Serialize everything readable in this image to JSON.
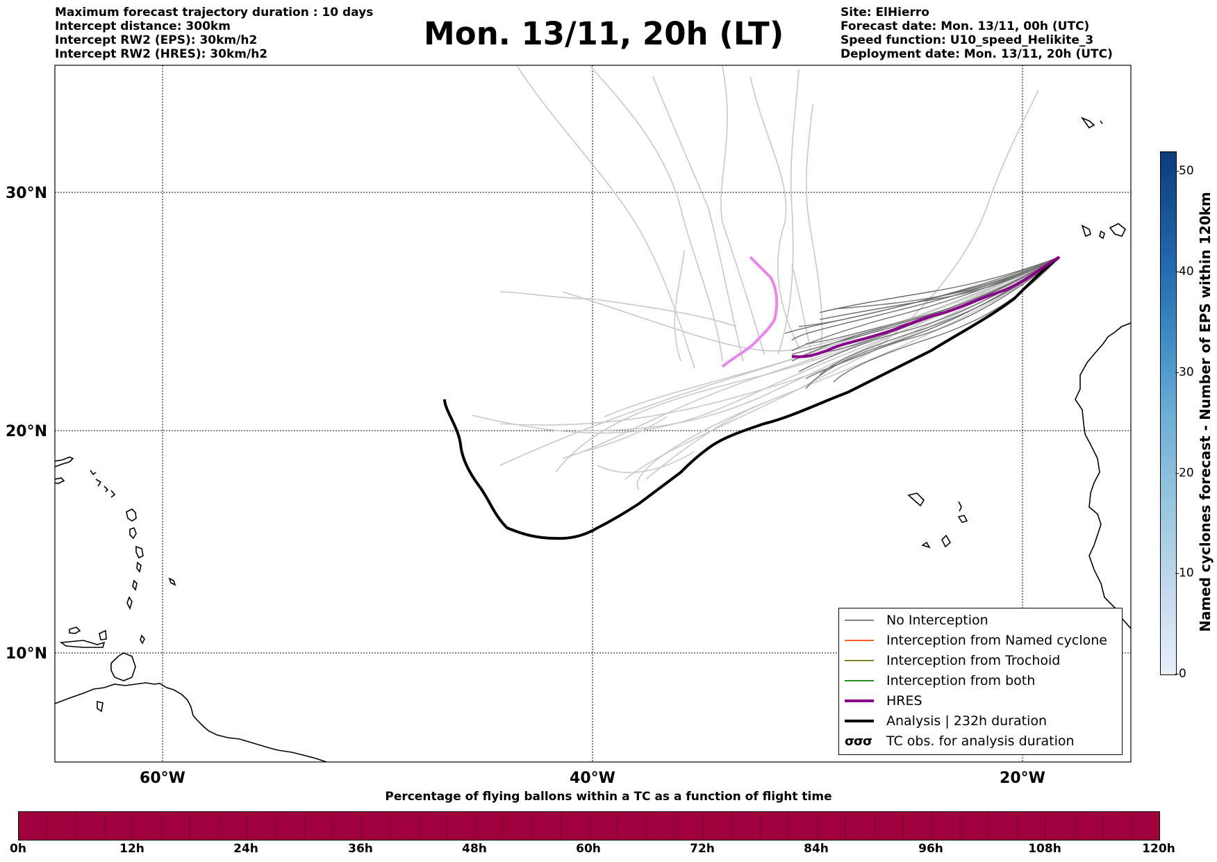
{
  "header_left": [
    "Maximum forecast trajectory duration : 10 days",
    "Intercept distance: 300km",
    "Intercept RW2 (EPS):  30km/h2",
    "Intercept RW2 (HRES): 30km/h2"
  ],
  "title": "Mon. 13/11, 20h (LT)",
  "header_right": [
    "Site: ElHierro",
    "Forecast date: Mon. 13/11, 00h (UTC)",
    "Speed function: U10_speed_Helikite_3",
    "Deployment date: Mon. 13/11, 20h (UTC)"
  ],
  "map": {
    "lon_range": [
      -65,
      15
    ],
    "lat_range": [
      5,
      35
    ],
    "lat_labels": [
      "30°N",
      "20°N",
      "10°N"
    ],
    "lon_labels": [
      "60°W",
      "40°W",
      "20°W"
    ],
    "grid": "dotted"
  },
  "legend": {
    "items": [
      {
        "label": "No Interception",
        "color": "#808080",
        "style": "thin"
      },
      {
        "label": "Interception from Named cyclone",
        "color": "#ff5a1e",
        "style": "thin"
      },
      {
        "label": "Interception from Trochoid",
        "color": "#808020",
        "style": "thin"
      },
      {
        "label": "Interception from both",
        "color": "#228b22",
        "style": "thin"
      },
      {
        "label": "HRES",
        "color": "#8b008b",
        "style": "thick"
      },
      {
        "label": "Analysis | 232h duration",
        "color": "#000000",
        "style": "thick"
      },
      {
        "label": "TC obs. for analysis duration",
        "color": "#000000",
        "style": "symbol",
        "symbol": "σσσ"
      }
    ]
  },
  "right_colorbar": {
    "label": "Named cyclones forecast - Number of EPS within 120km",
    "ticks": [
      "0",
      "10",
      "20",
      "30",
      "40",
      "50"
    ],
    "range": [
      0,
      52
    ]
  },
  "bottom_colorbar": {
    "title": "Percentage of flying ballons within a TC as a function of flight time",
    "ticks": [
      "0h",
      "12h",
      "24h",
      "36h",
      "48h",
      "60h",
      "72h",
      "84h",
      "96h",
      "108h",
      "120h"
    ],
    "color": "#a0003c"
  }
}
